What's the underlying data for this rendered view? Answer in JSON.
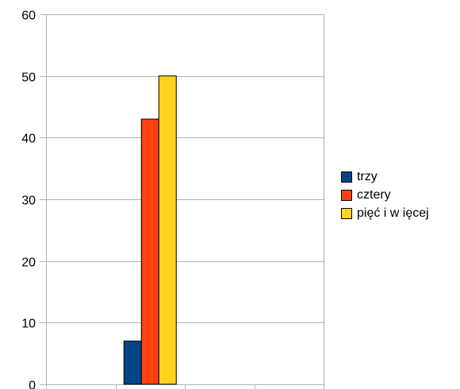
{
  "chart_data": {
    "type": "bar",
    "categories": [
      "",
      "",
      "",
      ""
    ],
    "series": [
      {
        "name": "trzy",
        "values": [
          null,
          7,
          null,
          null
        ],
        "color": "#004586"
      },
      {
        "name": "cztery",
        "values": [
          null,
          43,
          null,
          null
        ],
        "color": "#ff420e"
      },
      {
        "name": "pięć i w ięcej",
        "values": [
          null,
          50,
          null,
          null
        ],
        "color": "#ffd320"
      }
    ],
    "ylim": [
      0,
      60
    ],
    "yticks": [
      0,
      10,
      20,
      30,
      40,
      50,
      60
    ],
    "ytick_labels": [
      "0",
      "10",
      "20",
      "30",
      "40",
      "50",
      "60"
    ],
    "title": "",
    "xlabel": "",
    "ylabel": "",
    "grid": true,
    "legend_position": "right"
  }
}
